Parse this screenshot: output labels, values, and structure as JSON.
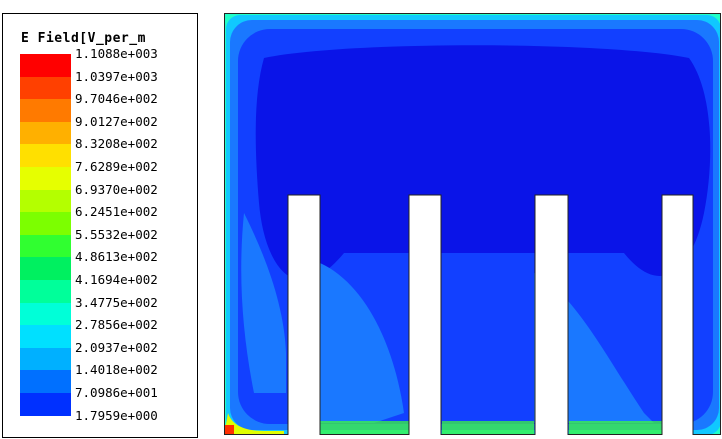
{
  "legend": {
    "title": "E Field[V_per_m",
    "ticks": [
      "1.1088e+003",
      "1.0397e+003",
      "9.7046e+002",
      "9.0127e+002",
      "8.3208e+002",
      "7.6289e+002",
      "6.9370e+002",
      "6.2451e+002",
      "5.5532e+002",
      "4.8613e+002",
      "4.1694e+002",
      "3.4775e+002",
      "2.7856e+002",
      "2.0937e+002",
      "1.4018e+002",
      "7.0986e+001",
      "1.7959e+000"
    ],
    "colors": [
      "#ff0000",
      "#ff4000",
      "#ff7a00",
      "#ffb000",
      "#ffe000",
      "#e6ff00",
      "#b4ff00",
      "#7cff00",
      "#30ff30",
      "#00f060",
      "#00ff9a",
      "#00ffd8",
      "#00e0ff",
      "#00b0ff",
      "#0070ff",
      "#0030ff"
    ]
  },
  "plot": {
    "field_colors": {
      "dark": "#0a14e8",
      "mid": "#1240ff",
      "light": "#1a78ff",
      "cyan": "#10c8ff",
      "aqua": "#20ffc8",
      "green": "#40ff30",
      "yellow": "#e0ff00",
      "hot": "#ff3000"
    },
    "fingers": 4
  }
}
